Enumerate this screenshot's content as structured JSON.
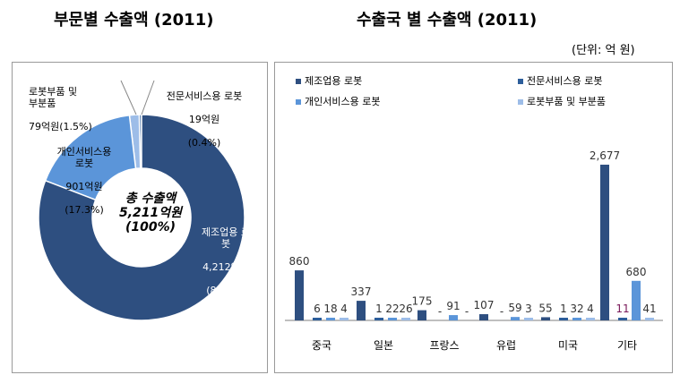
{
  "titles": {
    "left": "부문별 수출액 (2011)",
    "right": "수출국 별 수출액 (2011)",
    "unit": "(단위: 억 원)"
  },
  "colors": {
    "manufacturing": "#2e4f80",
    "professional": "#2d5e9b",
    "personal": "#5b95d9",
    "parts": "#9dbde8"
  },
  "chart_data": [
    {
      "type": "pie",
      "title": "부문별 수출액 (2011)",
      "center_label": [
        "총 수출액",
        "5,211억원",
        "(100%)"
      ],
      "slices": [
        {
          "label": "제조업용 로봇",
          "value": 4212,
          "value_label": "4,212억원",
          "percent": "(80.8%)"
        },
        {
          "label": "개인서비스용 로봇",
          "value": 901,
          "value_label": "901억원",
          "percent": "(17.3%)"
        },
        {
          "label": "로봇부품 및 부분품",
          "value": 79,
          "value_label": "79억원(1.5%)",
          "percent": ""
        },
        {
          "label": "전문서비스용 로봇",
          "value": 19,
          "value_label": "19억원",
          "percent": "(0.4%)"
        }
      ]
    },
    {
      "type": "bar",
      "title": "수출국 별 수출액 (2011)",
      "categories": [
        "중국",
        "일본",
        "프랑스",
        "유럽",
        "미국",
        "기타"
      ],
      "series": [
        {
          "name": "제조업용 로봇",
          "values": [
            860,
            337,
            175,
            107,
            55,
            2677
          ],
          "labels": [
            "860",
            "337",
            "175",
            "107",
            "55",
            "2,677"
          ]
        },
        {
          "name": "전문서비스용 로봇",
          "values": [
            6,
            1,
            0,
            0,
            1,
            11
          ],
          "labels": [
            "6",
            "1",
            "-",
            "-",
            "1",
            "11"
          ]
        },
        {
          "name": "개인서비스용 로봇",
          "values": [
            18,
            22,
            91,
            59,
            32,
            680
          ],
          "labels": [
            "18",
            "22",
            "91",
            "59",
            "32",
            "680"
          ]
        },
        {
          "name": "로봇부품 및 부분품",
          "values": [
            4,
            26,
            0,
            3,
            4,
            41
          ],
          "labels": [
            "4",
            "26",
            "-",
            "3",
            "4",
            "41"
          ]
        }
      ]
    }
  ]
}
